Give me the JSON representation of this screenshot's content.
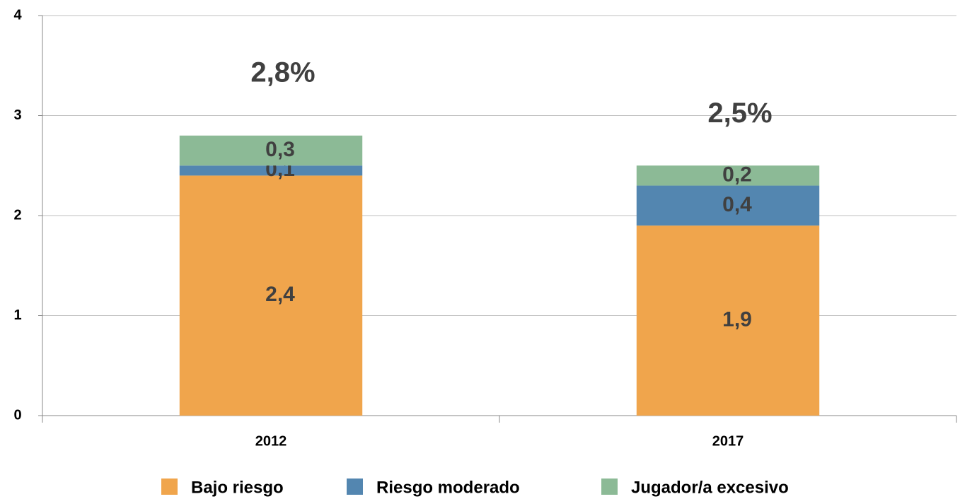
{
  "chart_data": {
    "type": "stacked_bar",
    "categories": [
      "2012",
      "2017"
    ],
    "series": [
      {
        "name": "Bajo riesgo",
        "color": "#f0a54c",
        "values": [
          2.4,
          1.9
        ],
        "value_labels": [
          "2,4",
          "1,9"
        ]
      },
      {
        "name": "Riesgo moderado",
        "color": "#5386b0",
        "values": [
          0.1,
          0.4
        ],
        "value_labels": [
          "0,1",
          "0,4"
        ]
      },
      {
        "name": "Jugador/a excesivo",
        "color": "#8cba96",
        "values": [
          0.3,
          0.2
        ],
        "value_labels": [
          "0,3",
          "0,2"
        ]
      }
    ],
    "annotations": [
      "2,8%",
      "2,5%"
    ],
    "ylim": [
      0,
      4
    ],
    "yticks": [
      0,
      1,
      2,
      3,
      4
    ],
    "grid": true,
    "legend": "bottom"
  }
}
